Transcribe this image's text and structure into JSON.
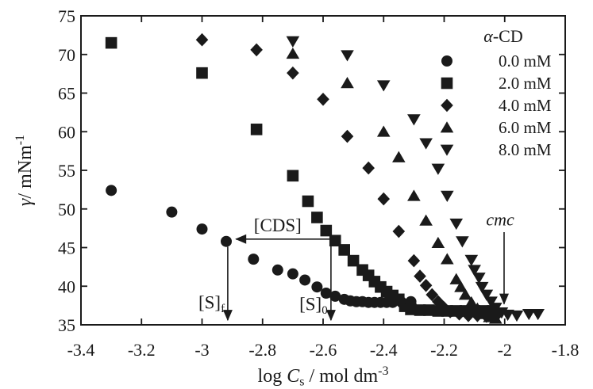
{
  "figure": {
    "bg": "#ffffff",
    "ink": "#1a1a1a"
  },
  "chart_data": {
    "type": "scatter",
    "title": "",
    "xlabel_parts": [
      {
        "t": "log "
      },
      {
        "t": "C",
        "i": true
      },
      {
        "t": "s",
        "sub": true
      },
      {
        "t": " / mol dm"
      },
      {
        "t": "-3",
        "sup": true
      }
    ],
    "ylabel_parts": [
      {
        "t": "γ",
        "i": true
      },
      {
        "t": "/ mNm"
      },
      {
        "t": "-1",
        "sup": true
      }
    ],
    "xlim": [
      -3.4,
      -1.8
    ],
    "ylim": [
      35,
      75
    ],
    "grid": false,
    "x_ticks": {
      "values": [
        -3.4,
        -3.2,
        -3.0,
        -2.8,
        -2.6,
        -2.4,
        -2.2,
        -2.0,
        -1.8
      ],
      "labels": [
        "-3.4",
        "-3.2",
        "-3",
        "-2.8",
        "-2.6",
        "-2.4",
        "-2.2",
        "-2",
        "-1.8"
      ]
    },
    "y_ticks": {
      "values": [
        35,
        40,
        45,
        50,
        55,
        60,
        65,
        70,
        75
      ],
      "labels": [
        "35",
        "40",
        "45",
        "50",
        "55",
        "60",
        "65",
        "70",
        "75"
      ]
    },
    "legend": {
      "title_parts": [
        {
          "t": "α",
          "i": true
        },
        {
          "t": "-CD"
        }
      ],
      "position": "top-right"
    },
    "series": [
      {
        "name": "0.0 mM",
        "marker": "circle",
        "points": [
          [
            -3.3,
            52.4
          ],
          [
            -3.1,
            49.6
          ],
          [
            -3.0,
            47.4
          ],
          [
            -2.92,
            45.8
          ],
          [
            -2.83,
            43.5
          ],
          [
            -2.75,
            42.1
          ],
          [
            -2.7,
            41.6
          ],
          [
            -2.66,
            40.8
          ],
          [
            -2.62,
            39.9
          ],
          [
            -2.59,
            39.1
          ],
          [
            -2.56,
            38.7
          ],
          [
            -2.53,
            38.3
          ],
          [
            -2.51,
            38.1
          ],
          [
            -2.49,
            38.0
          ],
          [
            -2.47,
            38.0
          ],
          [
            -2.45,
            37.9
          ],
          [
            -2.43,
            37.9
          ],
          [
            -2.41,
            37.9
          ],
          [
            -2.39,
            37.9
          ],
          [
            -2.37,
            37.9
          ],
          [
            -2.34,
            37.9
          ],
          [
            -2.31,
            38.0
          ]
        ]
      },
      {
        "name": "2.0 mM",
        "marker": "square",
        "points": [
          [
            -3.3,
            71.5
          ],
          [
            -3.0,
            67.6
          ],
          [
            -2.82,
            60.3
          ],
          [
            -2.7,
            54.3
          ],
          [
            -2.65,
            51.0
          ],
          [
            -2.62,
            48.9
          ],
          [
            -2.59,
            47.2
          ],
          [
            -2.56,
            45.9
          ],
          [
            -2.53,
            44.7
          ],
          [
            -2.5,
            43.3
          ],
          [
            -2.47,
            42.1
          ],
          [
            -2.45,
            41.4
          ],
          [
            -2.43,
            40.6
          ],
          [
            -2.41,
            39.9
          ],
          [
            -2.39,
            39.3
          ],
          [
            -2.37,
            38.8
          ],
          [
            -2.35,
            38.3
          ],
          [
            -2.33,
            37.4
          ],
          [
            -2.31,
            37.0
          ],
          [
            -2.28,
            36.9
          ],
          [
            -2.25,
            36.9
          ],
          [
            -2.22,
            36.8
          ],
          [
            -2.19,
            36.8
          ],
          [
            -2.16,
            36.8
          ],
          [
            -2.13,
            36.8
          ],
          [
            -2.1,
            36.8
          ],
          [
            -2.07,
            36.8
          ],
          [
            -2.04,
            36.8
          ]
        ]
      },
      {
        "name": "4.0 mM",
        "marker": "diamond",
        "points": [
          [
            -3.0,
            71.9
          ],
          [
            -2.82,
            70.6
          ],
          [
            -2.7,
            67.6
          ],
          [
            -2.6,
            64.2
          ],
          [
            -2.52,
            59.4
          ],
          [
            -2.45,
            55.3
          ],
          [
            -2.4,
            51.3
          ],
          [
            -2.35,
            47.1
          ],
          [
            -2.3,
            43.3
          ],
          [
            -2.28,
            41.3
          ],
          [
            -2.26,
            40.1
          ],
          [
            -2.24,
            38.9
          ],
          [
            -2.22,
            38.0
          ],
          [
            -2.2,
            37.2
          ],
          [
            -2.18,
            36.7
          ],
          [
            -2.15,
            36.4
          ],
          [
            -2.12,
            36.2
          ],
          [
            -2.09,
            36.2
          ],
          [
            -2.06,
            36.1
          ],
          [
            -2.03,
            36.1
          ]
        ]
      },
      {
        "name": "6.0 mM",
        "marker": "triangle-up",
        "points": [
          [
            -2.7,
            70.1
          ],
          [
            -2.52,
            66.3
          ],
          [
            -2.4,
            60.0
          ],
          [
            -2.35,
            56.7
          ],
          [
            -2.3,
            51.7
          ],
          [
            -2.26,
            48.5
          ],
          [
            -2.22,
            45.6
          ],
          [
            -2.19,
            43.5
          ],
          [
            -2.16,
            40.9
          ],
          [
            -2.145,
            39.9
          ],
          [
            -2.13,
            38.9
          ],
          [
            -2.11,
            37.9
          ],
          [
            -2.09,
            37.1
          ],
          [
            -2.07,
            36.4
          ],
          [
            -2.05,
            36.0
          ],
          [
            -2.03,
            35.8
          ]
        ]
      },
      {
        "name": "8.0 mM",
        "marker": "triangle-down",
        "points": [
          [
            -2.7,
            71.7
          ],
          [
            -2.52,
            69.9
          ],
          [
            -2.4,
            66.0
          ],
          [
            -2.3,
            61.6
          ],
          [
            -2.26,
            58.5
          ],
          [
            -2.22,
            55.2
          ],
          [
            -2.19,
            51.7
          ],
          [
            -2.16,
            48.1
          ],
          [
            -2.14,
            45.8
          ],
          [
            -2.11,
            43.4
          ],
          [
            -2.1,
            42.1
          ],
          [
            -2.085,
            41.1
          ],
          [
            -2.075,
            39.9
          ],
          [
            -2.06,
            38.9
          ],
          [
            -2.045,
            38.0
          ],
          [
            -2.03,
            37.2
          ],
          [
            -2.01,
            36.6
          ],
          [
            -1.99,
            36.3
          ],
          [
            -1.96,
            36.2
          ],
          [
            -1.92,
            36.4
          ],
          [
            -1.89,
            36.4
          ]
        ]
      }
    ],
    "annotations": {
      "labels": [
        {
          "id": "cds",
          "parts": [
            {
              "t": "[CDS]"
            }
          ],
          "x": -2.75,
          "y": 47.9,
          "anchor": "middle",
          "size": 23
        },
        {
          "id": "sf",
          "parts": [
            {
              "t": "[S]"
            },
            {
              "t": "f",
              "sub": true
            }
          ],
          "x": -2.925,
          "y": 37.9,
          "anchor": "end",
          "size": 23
        },
        {
          "id": "s0",
          "parts": [
            {
              "t": "[S]"
            },
            {
              "t": "0",
              "sub": true
            }
          ],
          "x": -2.585,
          "y": 37.7,
          "anchor": "end",
          "size": 23
        },
        {
          "id": "cmc",
          "parts": [
            {
              "t": "cmc",
              "i": true
            }
          ],
          "x": -2.015,
          "y": 48.7,
          "anchor": "middle",
          "size": 22
        }
      ],
      "arrows": [
        {
          "id": "cds-arrow",
          "x1": -2.574,
          "y1": 46.1,
          "x2": -2.888,
          "y2": 46.1
        },
        {
          "id": "s0-arrow",
          "x1": -2.574,
          "y1": 46.1,
          "x2": -2.574,
          "y2": 35.6
        },
        {
          "id": "sf-arrow",
          "x1": -2.915,
          "y1": 45.1,
          "x2": -2.915,
          "y2": 35.6
        },
        {
          "id": "cmc-arrow",
          "x1": -2.002,
          "y1": 47.0,
          "x2": -2.002,
          "y2": 37.7
        }
      ]
    }
  }
}
